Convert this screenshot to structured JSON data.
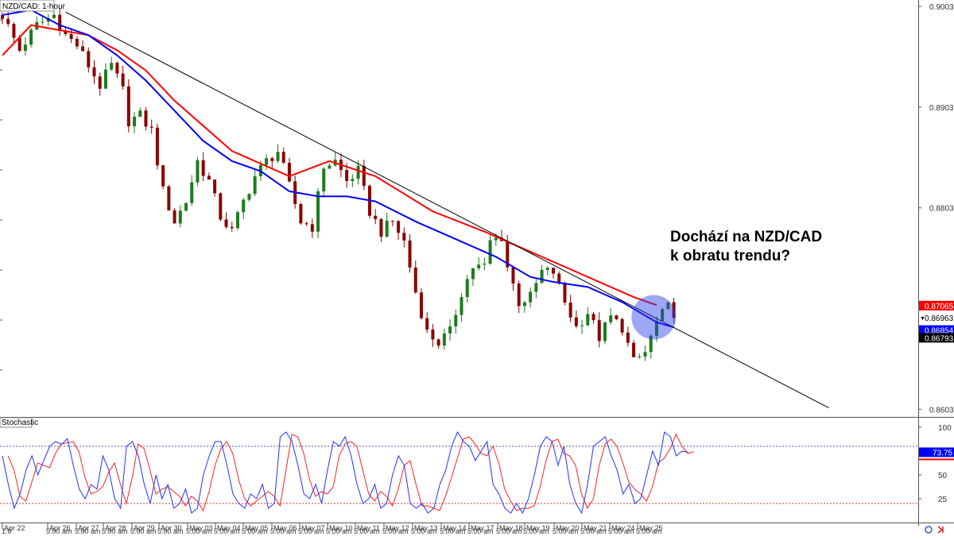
{
  "chart_data": {
    "type": "candlestick",
    "title": "NZD/CAD: 1-hour",
    "annotation": "Dochází na NZD/CAD\nk obratu trendu?",
    "price_axis": {
      "ylim": [
        0.8596,
        0.9006
      ],
      "ticks": [
        "0.90036",
        "0.89036",
        "0.88036",
        "0.86036"
      ],
      "tick_values": [
        0.90036,
        0.89036,
        0.88036,
        0.86036
      ]
    },
    "price_labels": [
      {
        "text": "0.87065",
        "value": 0.87065,
        "color": "#ff0000",
        "text_color": "#ffffff"
      },
      {
        "text": "0.86963",
        "value": 0.86963,
        "color": "#ffffff",
        "text_color": "#000000"
      },
      {
        "text": "0.86854",
        "value": 0.86854,
        "color": "#0000ff",
        "text_color": "#ffffff"
      },
      {
        "text": "0.86793",
        "value": 0.86793,
        "color": "#000000",
        "text_color": "#ffffff"
      }
    ],
    "dates": [
      "Apr 22",
      "Apr 26",
      "Apr 27",
      "Apr 28",
      "Apr 29",
      "Apr 30",
      "May 03",
      "May 04",
      "May 05",
      "May 06",
      "May 07",
      "May 10",
      "May 11",
      "May 12",
      "May 13",
      "May 14",
      "May 17",
      "May 18",
      "May 19",
      "May 20",
      "May 21",
      "May 24",
      "May 25"
    ],
    "time_labels": [
      "1:0",
      "5:00 am"
    ],
    "close_path": [
      [
        0,
        0.8995
      ],
      [
        3,
        0.896
      ],
      [
        6,
        0.8985
      ],
      [
        9,
        0.8995
      ],
      [
        11,
        0.8975
      ],
      [
        13,
        0.8965
      ],
      [
        15,
        0.8945
      ],
      [
        17,
        0.8925
      ],
      [
        19,
        0.8945
      ],
      [
        21,
        0.892
      ],
      [
        22,
        0.889
      ],
      [
        24,
        0.8895
      ],
      [
        26,
        0.888
      ],
      [
        28,
        0.882
      ],
      [
        30,
        0.879
      ],
      [
        32,
        0.881
      ],
      [
        34,
        0.885
      ],
      [
        36,
        0.883
      ],
      [
        38,
        0.8795
      ],
      [
        40,
        0.878
      ],
      [
        42,
        0.881
      ],
      [
        44,
        0.8835
      ],
      [
        46,
        0.885
      ],
      [
        48,
        0.886
      ],
      [
        50,
        0.8825
      ],
      [
        52,
        0.879
      ],
      [
        54,
        0.8785
      ],
      [
        56,
        0.8845
      ],
      [
        58,
        0.885
      ],
      [
        60,
        0.883
      ],
      [
        62,
        0.884
      ],
      [
        64,
        0.88
      ],
      [
        66,
        0.878
      ],
      [
        68,
        0.879
      ],
      [
        70,
        0.877
      ],
      [
        72,
        0.872
      ],
      [
        74,
        0.868
      ],
      [
        76,
        0.867
      ],
      [
        78,
        0.868
      ],
      [
        80,
        0.872
      ],
      [
        82,
        0.8745
      ],
      [
        84,
        0.8745
      ],
      [
        85,
        0.877
      ],
      [
        87,
        0.8775
      ],
      [
        88,
        0.8745
      ],
      [
        90,
        0.871
      ],
      [
        92,
        0.8715
      ],
      [
        94,
        0.874
      ],
      [
        96,
        0.874
      ],
      [
        98,
        0.871
      ],
      [
        100,
        0.8685
      ],
      [
        102,
        0.87
      ],
      [
        104,
        0.8675
      ],
      [
        106,
        0.8695
      ],
      [
        108,
        0.8685
      ],
      [
        110,
        0.865
      ],
      [
        112,
        0.866
      ],
      [
        114,
        0.869
      ],
      [
        116,
        0.8705
      ],
      [
        117,
        0.87
      ]
    ],
    "sma_red": [
      [
        0,
        0.8955
      ],
      [
        5,
        0.8985
      ],
      [
        10,
        0.898
      ],
      [
        15,
        0.8975
      ],
      [
        20,
        0.896
      ],
      [
        25,
        0.894
      ],
      [
        30,
        0.891
      ],
      [
        40,
        0.886
      ],
      [
        50,
        0.8835
      ],
      [
        57,
        0.885
      ],
      [
        65,
        0.8835
      ],
      [
        75,
        0.88
      ],
      [
        84,
        0.878
      ],
      [
        90,
        0.8765
      ],
      [
        100,
        0.874
      ],
      [
        110,
        0.8715
      ],
      [
        114,
        0.8707
      ]
    ],
    "sma_blue": [
      [
        0,
        0.8995
      ],
      [
        5,
        0.9
      ],
      [
        10,
        0.8985
      ],
      [
        15,
        0.8975
      ],
      [
        20,
        0.8955
      ],
      [
        25,
        0.893
      ],
      [
        30,
        0.89
      ],
      [
        35,
        0.887
      ],
      [
        40,
        0.885
      ],
      [
        45,
        0.884
      ],
      [
        50,
        0.882
      ],
      [
        55,
        0.8815
      ],
      [
        60,
        0.8815
      ],
      [
        65,
        0.881
      ],
      [
        72,
        0.879
      ],
      [
        80,
        0.877
      ],
      [
        86,
        0.8755
      ],
      [
        92,
        0.8735
      ],
      [
        96,
        0.873
      ],
      [
        102,
        0.8725
      ],
      [
        108,
        0.871
      ],
      [
        114,
        0.869
      ],
      [
        117,
        0.8685
      ]
    ],
    "trendline": [
      [
        11,
        0.8998
      ],
      [
        144,
        0.8605
      ]
    ],
    "highlight_circle": {
      "x": 113.5,
      "y": 0.8695
    },
    "stochastic": {
      "title": "Stochastic",
      "ylim": [
        0,
        100
      ],
      "ticks": [
        100,
        75,
        50,
        25
      ],
      "levels": [
        80,
        20
      ],
      "current_value": 73.75,
      "current_label": "73.75",
      "k_path": [
        [
          0,
          70
        ],
        [
          1,
          40
        ],
        [
          2,
          15
        ],
        [
          3,
          30
        ],
        [
          4,
          55
        ],
        [
          5,
          70
        ],
        [
          6,
          50
        ],
        [
          7,
          65
        ],
        [
          8,
          80
        ],
        [
          9,
          85
        ],
        [
          10,
          82
        ],
        [
          11,
          88
        ],
        [
          12,
          60
        ],
        [
          13,
          35
        ],
        [
          14,
          25
        ],
        [
          15,
          40
        ],
        [
          16,
          35
        ],
        [
          17,
          70
        ],
        [
          18,
          55
        ],
        [
          19,
          25
        ],
        [
          20,
          15
        ],
        [
          21,
          80
        ],
        [
          22,
          85
        ],
        [
          23,
          70
        ],
        [
          24,
          40
        ],
        [
          25,
          20
        ],
        [
          26,
          50
        ],
        [
          27,
          25
        ],
        [
          28,
          40
        ],
        [
          29,
          15
        ],
        [
          30,
          20
        ],
        [
          31,
          35
        ],
        [
          32,
          10
        ],
        [
          33,
          15
        ],
        [
          34,
          50
        ],
        [
          35,
          70
        ],
        [
          36,
          85
        ],
        [
          37,
          85
        ],
        [
          38,
          60
        ],
        [
          39,
          30
        ],
        [
          40,
          20
        ],
        [
          41,
          15
        ],
        [
          42,
          30
        ],
        [
          43,
          25
        ],
        [
          44,
          40
        ],
        [
          45,
          15
        ],
        [
          46,
          20
        ],
        [
          47,
          90
        ],
        [
          48,
          95
        ],
        [
          49,
          85
        ],
        [
          50,
          60
        ],
        [
          51,
          30
        ],
        [
          52,
          25
        ],
        [
          53,
          40
        ],
        [
          54,
          20
        ],
        [
          55,
          55
        ],
        [
          56,
          85
        ],
        [
          57,
          80
        ],
        [
          58,
          90
        ],
        [
          59,
          70
        ],
        [
          60,
          40
        ],
        [
          61,
          20
        ],
        [
          62,
          25
        ],
        [
          63,
          40
        ],
        [
          64,
          15
        ],
        [
          65,
          20
        ],
        [
          66,
          50
        ],
        [
          67,
          70
        ],
        [
          68,
          60
        ],
        [
          69,
          20
        ],
        [
          70,
          15
        ],
        [
          71,
          20
        ],
        [
          72,
          10
        ],
        [
          73,
          15
        ],
        [
          74,
          40
        ],
        [
          75,
          55
        ],
        [
          76,
          80
        ],
        [
          77,
          95
        ],
        [
          78,
          85
        ],
        [
          79,
          80
        ],
        [
          80,
          65
        ],
        [
          81,
          75
        ],
        [
          82,
          85
        ],
        [
          83,
          40
        ],
        [
          84,
          30
        ],
        [
          85,
          15
        ],
        [
          86,
          10
        ],
        [
          87,
          20
        ],
        [
          88,
          10
        ],
        [
          89,
          25
        ],
        [
          90,
          50
        ],
        [
          91,
          80
        ],
        [
          92,
          90
        ],
        [
          93,
          85
        ],
        [
          94,
          60
        ],
        [
          95,
          80
        ],
        [
          96,
          40
        ],
        [
          97,
          20
        ],
        [
          98,
          10
        ],
        [
          99,
          40
        ],
        [
          100,
          80
        ],
        [
          101,
          85
        ],
        [
          102,
          90
        ],
        [
          103,
          70
        ],
        [
          104,
          55
        ],
        [
          105,
          30
        ],
        [
          106,
          40
        ],
        [
          107,
          20
        ],
        [
          108,
          25
        ],
        [
          109,
          50
        ],
        [
          110,
          75
        ],
        [
          111,
          60
        ],
        [
          112,
          95
        ],
        [
          113,
          90
        ],
        [
          114,
          70
        ],
        [
          115,
          75
        ],
        [
          116,
          73.75
        ]
      ]
    }
  }
}
